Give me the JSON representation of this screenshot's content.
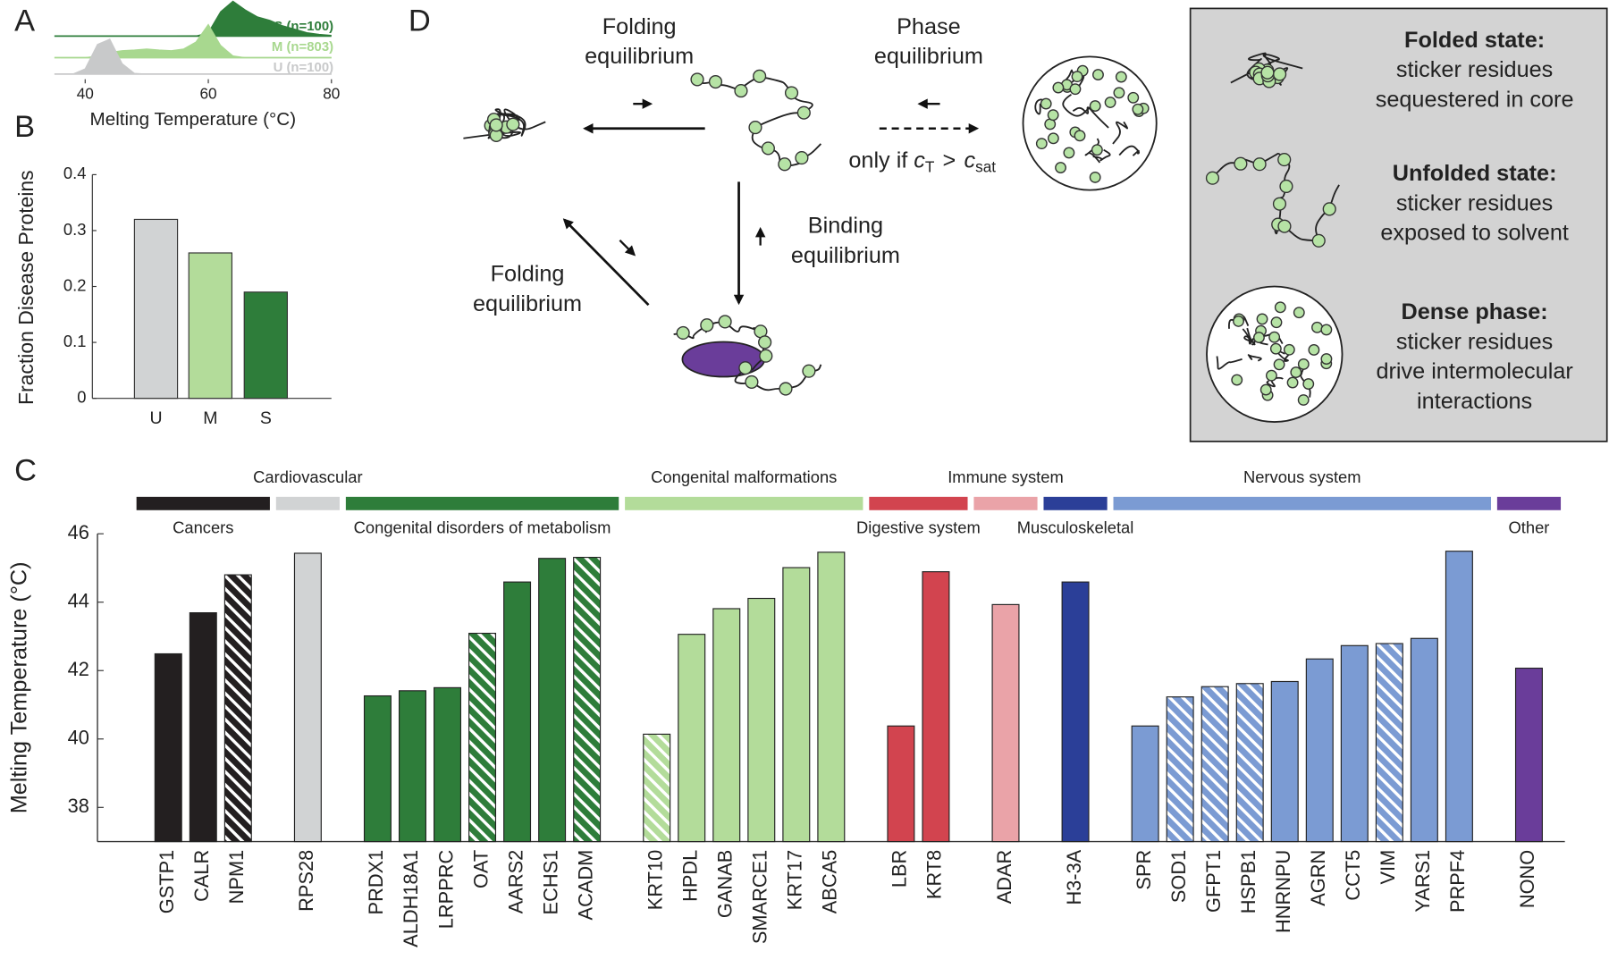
{
  "panel_labels": [
    "A",
    "B",
    "C",
    "D"
  ],
  "chart_data": [
    {
      "type": "ridgeline",
      "xlabel": "Melting Temperature (°C)",
      "xlim": [
        35,
        80
      ],
      "xticks": [
        40,
        60,
        80
      ],
      "x": [
        36,
        38,
        40,
        42,
        44,
        46,
        48,
        50,
        52,
        54,
        56,
        58,
        60,
        62,
        64,
        66,
        68,
        70,
        72,
        74,
        76,
        78,
        80
      ],
      "series": [
        {
          "name": "S (n=100)",
          "color": "#2e7d3a",
          "values": [
            0,
            0,
            0,
            0,
            0,
            0,
            0,
            0,
            0,
            0,
            0,
            0,
            0.1,
            0.7,
            1.0,
            0.75,
            0.55,
            0.45,
            0.3,
            0.2,
            0.1,
            0.05,
            0.02
          ]
        },
        {
          "name": "M (n=803)",
          "color": "#a8d88f",
          "values": [
            0,
            0,
            0,
            0.05,
            0.15,
            0.2,
            0.22,
            0.25,
            0.22,
            0.2,
            0.25,
            0.45,
            0.95,
            0.35,
            0.05,
            0,
            0,
            0,
            0,
            0,
            0,
            0,
            0
          ]
        },
        {
          "name": "U (n=100)",
          "color": "#c8c9ca",
          "values": [
            0,
            0,
            0.15,
            0.85,
            1.0,
            0.3,
            0.02,
            0,
            0,
            0,
            0,
            0,
            0,
            0,
            0,
            0,
            0,
            0,
            0,
            0,
            0,
            0,
            0
          ]
        }
      ]
    },
    {
      "type": "bar",
      "ylabel": "Fraction Disease Proteins",
      "categories": [
        "U",
        "M",
        "S"
      ],
      "values": [
        0.32,
        0.26,
        0.19
      ],
      "colors": [
        "#d1d3d4",
        "#b3dc9a",
        "#2e7d3a"
      ],
      "ylim": [
        0,
        0.4
      ],
      "yticks": [
        0,
        0.1,
        0.2,
        0.3,
        0.4
      ]
    },
    {
      "type": "grouped_bar",
      "ylabel": "Melting Temperature (°C)",
      "ylim": [
        37,
        46
      ],
      "yticks": [
        38,
        40,
        42,
        44,
        46
      ],
      "groups": [
        {
          "name": "Cancers",
          "color": "#231f20",
          "categories": [
            "GSTP1",
            "CALR",
            "NPM1"
          ],
          "values": [
            42.49,
            43.69,
            44.8
          ],
          "hatched": [
            false,
            false,
            true
          ]
        },
        {
          "name": "Cardiovascular",
          "color": "#d1d3d4",
          "categories": [
            "RPS28"
          ],
          "values": [
            45.43
          ],
          "hatched": [
            false
          ]
        },
        {
          "name": "Congenital disorders of metabolism",
          "color": "#2e7d3a",
          "categories": [
            "PRDX1",
            "ALDH18A1",
            "LRPPRC",
            "OAT",
            "AARS2",
            "ECHS1",
            "ACADM"
          ],
          "values": [
            41.26,
            41.41,
            41.5,
            43.09,
            44.59,
            45.28,
            45.31
          ],
          "hatched": [
            false,
            false,
            false,
            true,
            false,
            false,
            true
          ]
        },
        {
          "name": "Congenital malformations",
          "color": "#b3dc9a",
          "categories": [
            "KRT10",
            "HPDL",
            "GANAB",
            "SMARCE1",
            "KRT17",
            "ABCA5"
          ],
          "values": [
            40.14,
            43.06,
            43.81,
            44.11,
            45.01,
            45.46
          ],
          "hatched": [
            true,
            false,
            false,
            false,
            false,
            false
          ]
        },
        {
          "name": "Digestive system",
          "color": "#d2444f",
          "categories": [
            "LBR",
            "KRT8"
          ],
          "values": [
            40.38,
            44.89
          ],
          "hatched": [
            false,
            false
          ]
        },
        {
          "name": "Immune system",
          "color": "#eaa3a8",
          "categories": [
            "ADAR"
          ],
          "values": [
            43.93
          ],
          "hatched": [
            false
          ]
        },
        {
          "name": "Musculoskeletal",
          "color": "#2b3f98",
          "categories": [
            "H3-3A"
          ],
          "values": [
            44.59
          ],
          "hatched": [
            false
          ]
        },
        {
          "name": "Nervous system",
          "color": "#7b9bd3",
          "categories": [
            "SPR",
            "SOD1",
            "GFPT1",
            "HSPB1",
            "HNRNPU",
            "AGRN",
            "CCT5",
            "VIM",
            "YARS1",
            "PRPF4"
          ],
          "values": [
            40.38,
            41.23,
            41.53,
            41.62,
            41.68,
            42.34,
            42.73,
            42.79,
            42.94,
            45.49
          ],
          "hatched": [
            false,
            true,
            true,
            true,
            false,
            false,
            false,
            true,
            false,
            false
          ]
        },
        {
          "name": "Other",
          "color": "#6a3d9a",
          "categories": [
            "NONO"
          ],
          "values": [
            42.07
          ],
          "hatched": [
            false
          ]
        }
      ]
    }
  ],
  "diagram": {
    "folding_top": [
      "Folding",
      "equilibrium"
    ],
    "phase": [
      "Phase",
      "equilibrium"
    ],
    "binding": [
      "Binding",
      "equilibrium"
    ],
    "folding_left": [
      "Folding",
      "equilibrium"
    ],
    "condition": [
      "only if",
      "c",
      "T",
      ">",
      "c",
      "sat"
    ],
    "legend": [
      {
        "title": "Folded state:",
        "lines": [
          "sticker residues",
          "sequestered in core"
        ]
      },
      {
        "title": "Unfolded state:",
        "lines": [
          "sticker residues",
          "exposed to solvent"
        ]
      },
      {
        "title": "Dense phase:",
        "lines": [
          "sticker residues",
          "drive intermolecular",
          "interactions"
        ]
      }
    ]
  }
}
